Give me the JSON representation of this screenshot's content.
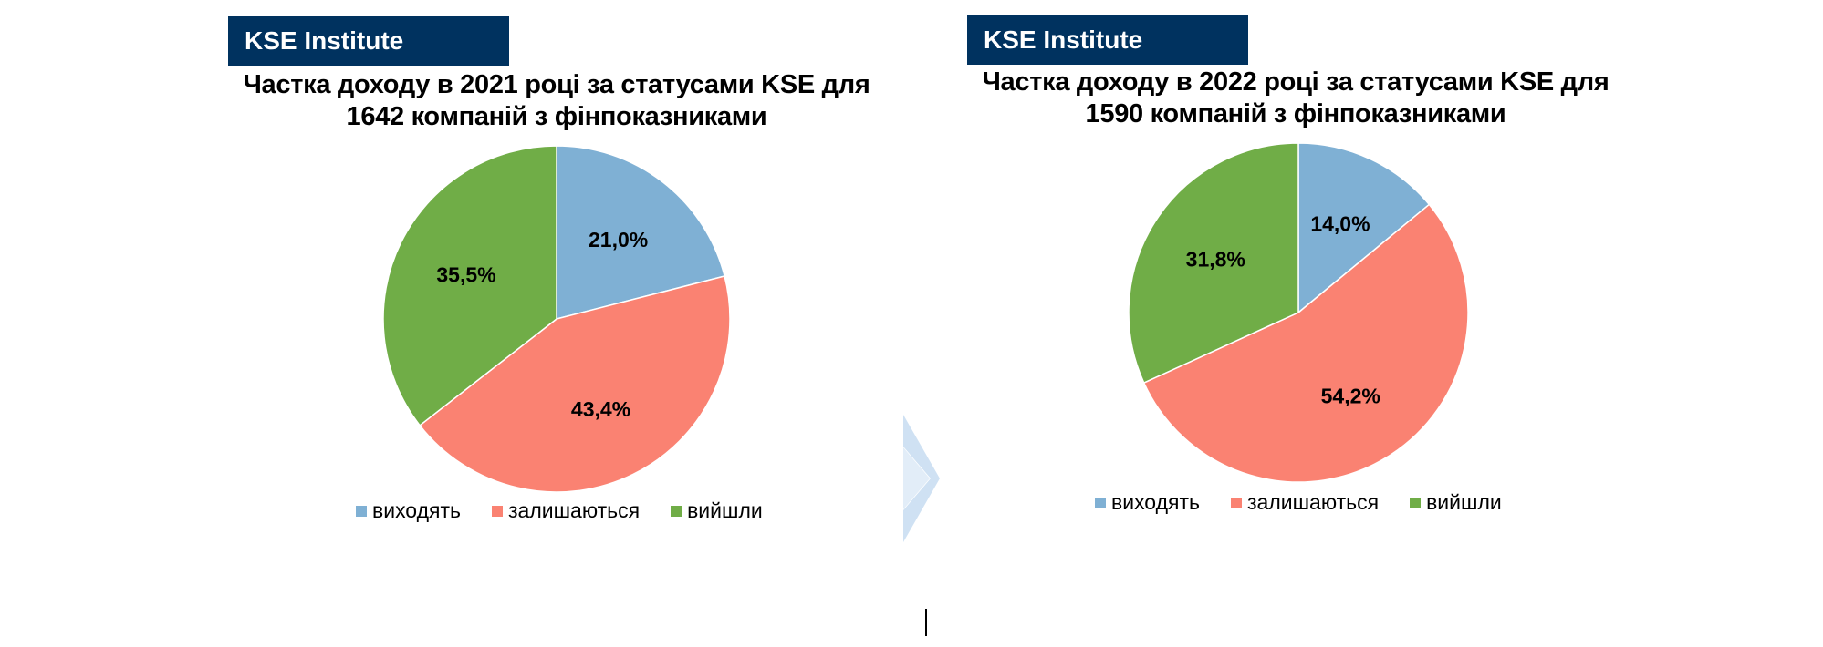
{
  "charts": [
    {
      "badge": "KSE Institute",
      "title_lines": [
        "Частка доходу в 2021 році за статусами KSE для",
        "1642 компаній з фінпоказниками"
      ]
    },
    {
      "badge": "KSE Institute",
      "title_lines": [
        "Частка доходу в 2022 році за статусами KSE для",
        "1590 компаній з фінпоказниками"
      ]
    }
  ],
  "colors": {
    "badge_bg": "#00325f",
    "виходять": "#7fb0d4",
    "залишаються": "#fa8272",
    "вийшли": "#70ad47",
    "arrow": "#cfe1f3"
  },
  "icons": [
    "chevron-right-arrow-icon"
  ],
  "chart_data": [
    {
      "type": "pie",
      "title": "Частка доходу в 2021 році за статусами KSE для 1642 компаній з фінпоказниками",
      "categories": [
        "виходять",
        "залишаються",
        "вийшли"
      ],
      "values": [
        21.0,
        43.4,
        35.5
      ],
      "labels": [
        "21,0%",
        "43,4%",
        "35,5%"
      ],
      "legend": "bottom"
    },
    {
      "type": "pie",
      "title": "Частка доходу в 2022 році за статусами KSE для 1590 компаній з фінпоказниками",
      "categories": [
        "виходять",
        "залишаються",
        "вийшли"
      ],
      "values": [
        14.0,
        54.2,
        31.8
      ],
      "labels": [
        "14,0%",
        "54,2%",
        "31,8%"
      ],
      "legend": "bottom"
    }
  ]
}
